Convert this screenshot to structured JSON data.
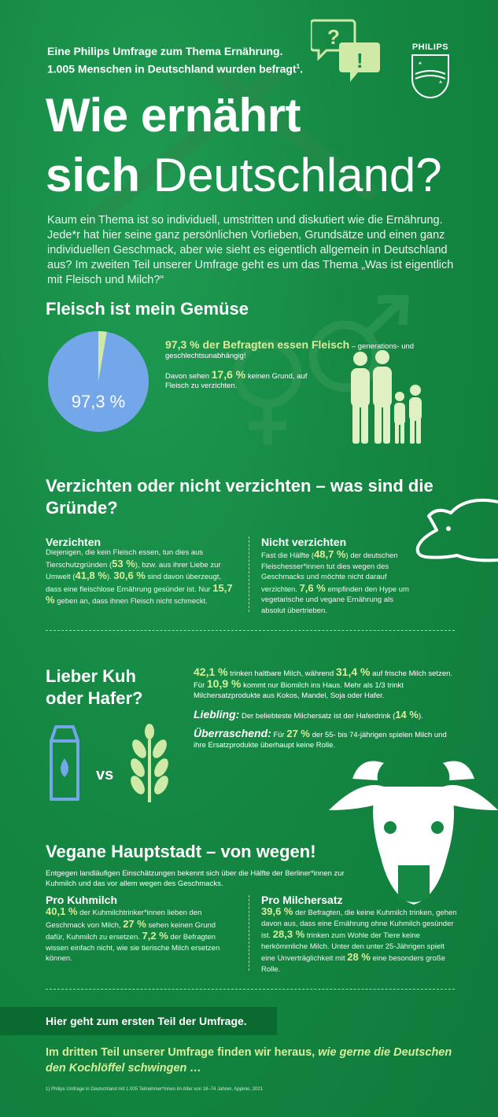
{
  "header": {
    "intro_line1": "Eine Philips Umfrage zum Thema Ernährung.",
    "intro_line2": "1.005 Menschen in Deutschland wurden  befragt",
    "footnote_mark": "1",
    "intro_line2_end": ".",
    "logo_text": "PHILIPS",
    "title_line1": "Wie ernährt",
    "title_line2_bold": "sich",
    "title_line2_light": " Deutschland?"
  },
  "intro_text": "Kaum ein Thema ist so individuell, umstritten und diskutiert wie die Ernährung. Jede*r hat hier seine ganz persönlichen Vorlieben, Grundsätze und einen ganz individuellen Geschmack, aber wie sieht es eigentlich allgemein in Deutschland aus? Im zweiten Teil unserer Umfrage geht es um das Thema „Was ist eigentlich mit Fleisch und Milch?“",
  "section1": {
    "heading": "Fleisch ist mein Gemüse",
    "pie_label": "97,3 %",
    "stat1_highlight": "97,3 % der Befragten essen Fleisch",
    "stat1_rest": " – generations- und geschlechtsunabhängig!",
    "stat2_pre": "Davon sehen ",
    "stat2_value": "17,6 %",
    "stat2_rest": " keinen Grund, auf Fleisch zu verzichten.",
    "colors": {
      "pie_main": "#74a7e9",
      "pie_small": "#cfe9a6"
    }
  },
  "chart_data": {
    "type": "pie",
    "values": [
      97.3,
      2.7
    ],
    "data_label": "97,3 %"
  },
  "section2": {
    "heading": "Verzichten oder nicht verzichten – was sind die Gründe?",
    "left_title": "Verzichten",
    "left_t1": "Diejenigen, die kein Fleisch essen, tun dies aus Tierschutzgründen (",
    "left_v1": "53 %",
    "left_t2": "), bzw. aus ihrer Liebe zur Umwelt (",
    "left_v2": "41,8 %",
    "left_t3": "). ",
    "left_v3": "30,6 %",
    "left_t4": " sind davon überzeugt, dass eine fleischlose Ernährung gesünder ist. Nur ",
    "left_v4": "15,7 %",
    "left_t5": " geben an, dass ihnen Fleisch nicht schmeckt.",
    "right_title": "Nicht verzichten",
    "right_t1": "Fast die Hälfte (",
    "right_v1": "48,7 %",
    "right_t2": ") der deutschen Fleischesser*innen tut dies wegen des Geschmacks und möchte nicht darauf verzichten. ",
    "right_v2": "7,6 %",
    "right_t3": " empfinden den Hype um vegetarische und vegane Ernährung als absolut übertrieben."
  },
  "section3": {
    "heading_line1": "Lieber Kuh",
    "heading_line2": "oder Hafer?",
    "vs_label": "vs",
    "m_v1": "42,1 %",
    "m_t1": " trinken haltbare Milch, während ",
    "m_v2": "31,4 %",
    "m_t2": " auf frische Milch setzen. Für ",
    "m_v3": "10,9 %",
    "m_t3": " kommt nur Biomilch ins Haus. Mehr als 1/3 trinkt Milchersatzprodukte aus Kokos, Mandel, Soja oder Hafer.",
    "liebling_label": "Liebling:",
    "liebling_text": " Der beliebteste Milchersatz ist der Haferdrink (",
    "liebling_value": "14 %",
    "liebling_end": ").",
    "ueber_label": "Überraschend:",
    "ueber_t1": " Für ",
    "ueber_value": "27 %",
    "ueber_t2": " der 55- bis 74-jährigen spielen Milch und ihre Ersatzprodukte überhaupt keine Rolle."
  },
  "section4": {
    "heading": "Vegane Hauptstadt – von wegen!",
    "intro": "Entgegen landläufigen Einschätzungen bekennt sich über die Hälfte der Berliner*innen zur Kuhmilch und das vor allem wegen des Geschmacks.",
    "left_title": "Pro Kuhmilch",
    "left_v1": "40,1 %",
    "left_t1": " der Kuhmilchtrinker*innen lieben den Geschmack von Milch, ",
    "left_v2": "27 %",
    "left_t2": " sehen keinen Grund dafür, Kuhmilch zu ersetzen. ",
    "left_v3": "7,2 %",
    "left_t3": " der Befragten wissen einfach nicht, wie sie tierische Milch ersetzen können.",
    "right_title": "Pro Milchersatz",
    "right_v1": "39,6 %",
    "right_t1": " der Befragten, die keine Kuhmilch trinken, gehen davon aus, dass eine Ernährung ohne Kuhmilch gesünder ist. ",
    "right_v2": "28,3 %",
    "right_t2": " trinken zum Wohle der Tiere keine herkömmliche Milch. Unter den unter 25-Jährigen spielt eine Unverträglichkeit mit ",
    "right_v3": "28 %",
    "right_t3": " eine besonders große Rolle."
  },
  "footer": {
    "link_label": "Hier geht zum ersten Teil der Umfrage.",
    "teaser_plain": "Im dritten Teil unserer Umfrage finden wir heraus, ",
    "teaser_italic": "wie gerne die Deutschen den Kochlöffel schwingen …",
    "footnote": "1)  Philips Umfrage in Deutschland mit 1.005 Teilnehmer*innen im Alter von 18–74 Jahren, Appinio, 2021"
  }
}
